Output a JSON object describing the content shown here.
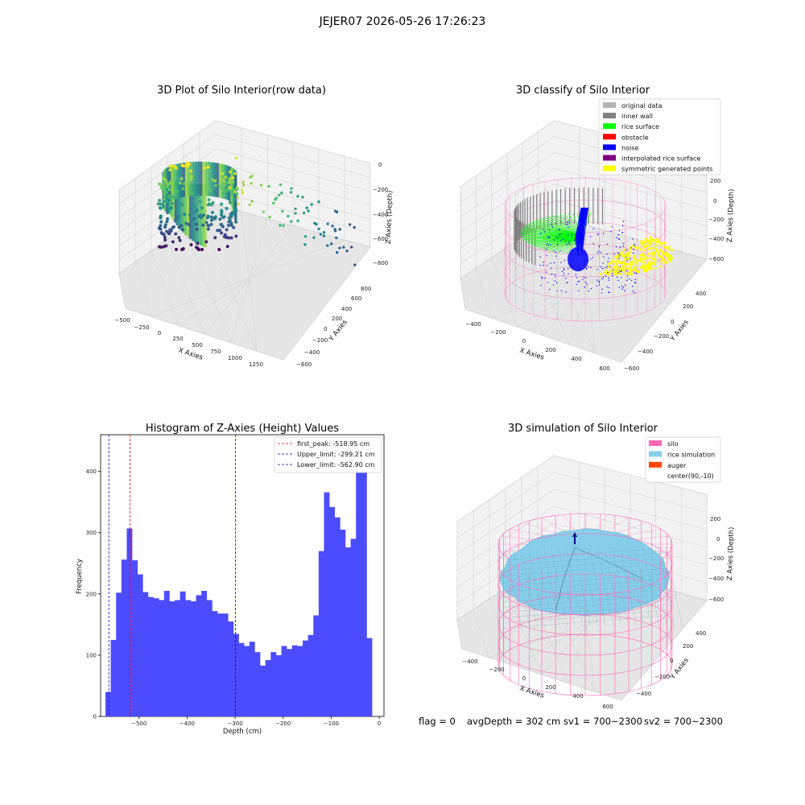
{
  "suptitle": "JEJER07 2026-05-26 17:26:23",
  "status": {
    "flag": "flag = 0",
    "avg_depth": "avgDepth = 302 cm",
    "sv1": "sv1 = 700~2300",
    "sv2": "sv2 = 700~2300"
  },
  "colors": {
    "original": "#b4b4b4",
    "inner_wall": "#808080",
    "rice_surface": "#00ff00",
    "obstacle": "#ff0000",
    "noise": "#0000ff",
    "interpolated": "#800080",
    "symmetric": "#ffff00",
    "silo": "#ff69b4",
    "rice_sim": "#87ceeb",
    "auger": "#ff4500",
    "hist_bar": "#4c4cff"
  },
  "plot_raw": {
    "title": "3D Plot of Silo Interior(row data)",
    "xlabel": "X Axies",
    "ylabel": "Y Axies",
    "zlabel": "Z Axies (Depth)",
    "xticks": [
      "−500",
      "−250",
      "0",
      "250",
      "500",
      "750",
      "1000",
      "1250"
    ],
    "yticks": [
      "−600",
      "−400",
      "−200",
      "0",
      "200",
      "400",
      "600",
      "800"
    ],
    "zticks": [
      "0",
      "−200",
      "−400",
      "−600",
      "−800"
    ]
  },
  "plot_classify": {
    "title": "3D classify of Silo Interior",
    "xlabel": "X Axies",
    "ylabel": "Y Axies",
    "zlabel": "Z Axies (Depth)",
    "xticks": [
      "−400",
      "−200",
      "0",
      "200",
      "400",
      "600"
    ],
    "yticks": [
      "−600",
      "−400",
      "−200",
      "0",
      "200",
      "400"
    ],
    "zticks": [
      "200",
      "0",
      "−200",
      "−400",
      "−600"
    ],
    "legend": [
      {
        "label": "original data",
        "color_key": "original"
      },
      {
        "label": "inner wall",
        "color_key": "inner_wall"
      },
      {
        "label": "rice surface",
        "color_key": "rice_surface"
      },
      {
        "label": "obstacle",
        "color_key": "obstacle"
      },
      {
        "label": "noise",
        "color_key": "noise"
      },
      {
        "label": "interpolated rice surface",
        "color_key": "interpolated"
      },
      {
        "label": "symmetric generated points",
        "color_key": "symmetric"
      }
    ]
  },
  "plot_sim": {
    "title": "3D simulation of Silo Interior",
    "xlabel": "X Axies",
    "ylabel": "Y Axies",
    "zlabel": "Z Axies (Depth)",
    "xticks": [
      "−400",
      "−200",
      "0",
      "200",
      "400",
      "600"
    ],
    "yticks": [
      "−400",
      "−200",
      "0",
      "200",
      "400"
    ],
    "zticks": [
      "200",
      "0",
      "−200",
      "−400",
      "−600"
    ],
    "legend": [
      {
        "label": "silo",
        "color_key": "silo"
      },
      {
        "label": "rice simulation",
        "color_key": "rice_sim"
      },
      {
        "label": "auger",
        "color_key": "auger"
      },
      {
        "label": "center(90,-10)",
        "color_key": ""
      }
    ]
  },
  "chart_data": {
    "type": "bar",
    "title": "Histogram of Z-Axies (Height) Values",
    "xlabel": "Depth (cm)",
    "ylabel": "Frequency",
    "xlim": [
      -580,
      10
    ],
    "ylim": [
      0,
      460
    ],
    "xticks": [
      -500,
      -400,
      -300,
      -200,
      -100,
      0
    ],
    "yticks": [
      0,
      100,
      200,
      300,
      400
    ],
    "bin_start": -570,
    "bin_width": 11.1,
    "values": [
      40,
      125,
      202,
      256,
      307,
      255,
      232,
      203,
      195,
      193,
      190,
      205,
      188,
      190,
      204,
      190,
      188,
      198,
      205,
      190,
      172,
      168,
      168,
      155,
      135,
      120,
      115,
      122,
      105,
      83,
      92,
      105,
      100,
      115,
      110,
      116,
      115,
      124,
      133,
      165,
      270,
      366,
      342,
      325,
      305,
      276,
      290,
      400,
      403,
      128
    ],
    "vlines": [
      {
        "name": "first_peak: -518.95 cm",
        "x": -518.95,
        "color": "#ff0000"
      },
      {
        "name": "Upper_limit: -299.21 cm",
        "x": -299.21,
        "color": "#0000cc"
      },
      {
        "name": "Lower_limit: -562.90 cm",
        "x": -562.9,
        "color": "#0000cc"
      }
    ],
    "legend_position": "top-right"
  }
}
